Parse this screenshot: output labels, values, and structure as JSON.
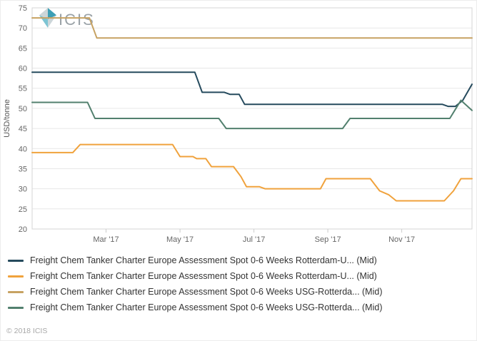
{
  "watermark": {
    "logo_text": "ICIS"
  },
  "footer": {
    "copyright": "© 2018 ICIS"
  },
  "chart_data": {
    "type": "line",
    "title": "",
    "ylabel": "USD/tonne",
    "xlabel": "",
    "ylim": [
      20,
      75
    ],
    "yticks": [
      20,
      25,
      30,
      35,
      40,
      45,
      50,
      55,
      60,
      65,
      70,
      75
    ],
    "xlim_months": [
      0,
      11.9
    ],
    "xticks": [
      {
        "pos": 2,
        "label": "Mar '17"
      },
      {
        "pos": 4,
        "label": "May '17"
      },
      {
        "pos": 6,
        "label": "Jul '17"
      },
      {
        "pos": 8,
        "label": "Sep '17"
      },
      {
        "pos": 10,
        "label": "Nov '17"
      }
    ],
    "grid": "horizontal-only",
    "legend_position": "bottom-left",
    "series": [
      {
        "name": "Freight Chem Tanker Charter Europe Assessment Spot 0-6 Weeks Rotterdam-U... (Mid)",
        "color": "#254a5d",
        "points": [
          [
            0,
            59
          ],
          [
            4.4,
            59
          ],
          [
            4.6,
            54
          ],
          [
            5.2,
            54
          ],
          [
            5.35,
            53.5
          ],
          [
            5.6,
            53.5
          ],
          [
            5.75,
            51
          ],
          [
            11.1,
            51
          ],
          [
            11.25,
            50.5
          ],
          [
            11.45,
            50.5
          ],
          [
            11.65,
            52
          ],
          [
            11.9,
            56
          ]
        ]
      },
      {
        "name": "Freight Chem Tanker Charter Europe Assessment Spot 0-6 Weeks Rotterdam-U... (Mid)",
        "color": "#f0a23c",
        "points": [
          [
            0,
            39
          ],
          [
            1.1,
            39
          ],
          [
            1.3,
            41
          ],
          [
            3.8,
            41
          ],
          [
            4.0,
            38
          ],
          [
            4.35,
            38
          ],
          [
            4.45,
            37.5
          ],
          [
            4.7,
            37.5
          ],
          [
            4.85,
            35.5
          ],
          [
            5.45,
            35.5
          ],
          [
            5.65,
            33
          ],
          [
            5.8,
            30.5
          ],
          [
            6.15,
            30.5
          ],
          [
            6.3,
            30
          ],
          [
            7.8,
            30
          ],
          [
            7.95,
            32.5
          ],
          [
            9.15,
            32.5
          ],
          [
            9.4,
            29.5
          ],
          [
            9.65,
            28.5
          ],
          [
            9.85,
            27
          ],
          [
            11.15,
            27
          ],
          [
            11.4,
            29.5
          ],
          [
            11.6,
            32.5
          ],
          [
            11.9,
            32.5
          ]
        ]
      },
      {
        "name": "Freight Chem Tanker Charter Europe Assessment Spot 0-6 Weeks USG-Rotterda... (Mid)",
        "color": "#c7a262",
        "points": [
          [
            0,
            72.5
          ],
          [
            1.55,
            72.5
          ],
          [
            1.75,
            67.5
          ],
          [
            11.9,
            67.5
          ]
        ]
      },
      {
        "name": "Freight Chem Tanker Charter Europe Assessment Spot 0-6 Weeks USG-Rotterda... (Mid)",
        "color": "#52806e",
        "points": [
          [
            0,
            51.5
          ],
          [
            1.5,
            51.5
          ],
          [
            1.7,
            47.5
          ],
          [
            5.05,
            47.5
          ],
          [
            5.25,
            45
          ],
          [
            8.4,
            45
          ],
          [
            8.6,
            47.5
          ],
          [
            11.3,
            47.5
          ],
          [
            11.6,
            52
          ],
          [
            11.9,
            49.5
          ]
        ]
      }
    ]
  }
}
